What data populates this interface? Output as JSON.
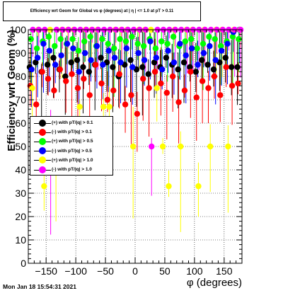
{
  "title": "Efficiency wrt Geom for Global vs φ (degrees) at | η | <= 1.0 at pT > 0.11",
  "footer": "Mon Jan 18 15:54:31 2021",
  "legend": [
    {
      "label": "(+) with pT/|q| > 0.1",
      "color": "#000000"
    },
    {
      "label": "(-) with pT/|q| > 0.1",
      "color": "#ff0000"
    },
    {
      "label": "(+) with pT/|q| > 0.5",
      "color": "#00ff00"
    },
    {
      "label": "(-) with pT/|q| > 0.5",
      "color": "#0000ff"
    },
    {
      "label": "(+) with pT/|q| > 1.0",
      "color": "#ffff00"
    },
    {
      "label": "(-) with pT/|q| > 1.0",
      "color": "#ff00ff"
    }
  ],
  "chart_data": {
    "type": "scatter",
    "title": "Efficiency wrt Geom for Global vs φ (degrees) at | η | <= 1.0 at pT > 0.11",
    "xlabel": "φ (degrees)",
    "ylabel": "Efficiency wrt Geom (%)",
    "xlim": [
      -180,
      180
    ],
    "ylim": [
      0,
      100
    ],
    "xticks": [
      -150,
      -100,
      -50,
      0,
      50,
      100,
      150
    ],
    "yticks": [
      0,
      10,
      20,
      30,
      40,
      50,
      60,
      70,
      80,
      90,
      100
    ],
    "grid": true,
    "legend_position": "center-left",
    "series": [
      {
        "name": "(+) with pT/|q| > 0.1",
        "color": "#000000",
        "x": [
          -175,
          -165,
          -155,
          -145,
          -135,
          -125,
          -115,
          -105,
          -95,
          -85,
          -75,
          -65,
          -55,
          -45,
          -35,
          -25,
          -15,
          -5,
          5,
          15,
          25,
          35,
          45,
          55,
          65,
          75,
          85,
          95,
          105,
          115,
          125,
          135,
          145,
          155,
          165,
          175
        ],
        "y": [
          84,
          86,
          82,
          85,
          88,
          83,
          80,
          86,
          87,
          84,
          82,
          85,
          88,
          86,
          84,
          80,
          85,
          87,
          83,
          84,
          81,
          86,
          84,
          88,
          85,
          83,
          86,
          84,
          82,
          87,
          85,
          83,
          86,
          88,
          84,
          84
        ]
      },
      {
        "name": "(-) with pT/|q| > 0.1",
        "color": "#ff0000",
        "x": [
          -175,
          -165,
          -155,
          -145,
          -135,
          -125,
          -115,
          -105,
          -95,
          -85,
          -75,
          -65,
          -55,
          -45,
          -35,
          -25,
          -15,
          -5,
          5,
          15,
          25,
          35,
          45,
          55,
          65,
          75,
          85,
          95,
          105,
          115,
          125,
          135,
          145,
          155,
          165,
          175
        ],
        "y": [
          76,
          68,
          82,
          79,
          74,
          83,
          78,
          81,
          75,
          79,
          72,
          85,
          77,
          70,
          74,
          81,
          68,
          72,
          64,
          79,
          75,
          82,
          77,
          73,
          80,
          69,
          74,
          82,
          71,
          78,
          75,
          80,
          72,
          84,
          76,
          77
        ]
      },
      {
        "name": "(+) with pT/|q| > 0.5",
        "color": "#00ff00",
        "x": [
          -175,
          -165,
          -155,
          -145,
          -135,
          -125,
          -115,
          -105,
          -95,
          -85,
          -75,
          -65,
          -55,
          -45,
          -35,
          -25,
          -15,
          -5,
          5,
          15,
          25,
          35,
          45,
          55,
          65,
          75,
          85,
          95,
          105,
          115,
          125,
          135,
          145,
          155,
          165,
          175
        ],
        "y": [
          96,
          92,
          95,
          97,
          93,
          96,
          94,
          96,
          91,
          95,
          97,
          93,
          96,
          94,
          92,
          96,
          95,
          97,
          94,
          93,
          96,
          92,
          95,
          94,
          97,
          93,
          95,
          96,
          92,
          94,
          97,
          96,
          93,
          95,
          97,
          96
        ]
      },
      {
        "name": "(-) with pT/|q| > 0.5",
        "color": "#0000ff",
        "x": [
          -175,
          -165,
          -155,
          -145,
          -135,
          -125,
          -115,
          -105,
          -95,
          -85,
          -75,
          -65,
          -55,
          -45,
          -35,
          -25,
          -15,
          -5,
          5,
          15,
          25,
          35,
          45,
          55,
          65,
          75,
          85,
          95,
          105,
          115,
          125,
          135,
          145,
          155,
          165,
          175
        ],
        "y": [
          83,
          88,
          94,
          91,
          85,
          89,
          94,
          92,
          82,
          90,
          87,
          93,
          85,
          91,
          88,
          86,
          92,
          84,
          90,
          87,
          95,
          88,
          83,
          91,
          86,
          94,
          89,
          92,
          85,
          90,
          93,
          87,
          91,
          94,
          99,
          100
        ]
      },
      {
        "name": "(+) with pT/|q| > 1.0",
        "color": "#ffff00",
        "x": [
          -175,
          -165,
          -155,
          -145,
          -135,
          -125,
          -115,
          -105,
          -95,
          -85,
          -75,
          -65,
          -55,
          -45,
          -35,
          -25,
          -15,
          -5,
          5,
          15,
          25,
          35,
          45,
          55,
          65,
          75,
          85,
          95,
          105,
          115,
          125,
          135,
          145,
          155,
          165,
          175
        ],
        "y": [
          75,
          100,
          33,
          100,
          50,
          100,
          100,
          100,
          67,
          100,
          100,
          100,
          67,
          67,
          100,
          100,
          100,
          50,
          100,
          100,
          100,
          75,
          50,
          33,
          100,
          50,
          100,
          100,
          33,
          100,
          50,
          100,
          100,
          50,
          100,
          100
        ]
      },
      {
        "name": "(-) with pT/|q| > 1.0",
        "color": "#ff00ff",
        "x": [
          -175,
          -165,
          -155,
          -145,
          -135,
          -125,
          -115,
          -105,
          -95,
          -85,
          -75,
          -65,
          -55,
          -45,
          -35,
          -25,
          -15,
          -5,
          5,
          15,
          25,
          35,
          45,
          55,
          65,
          75,
          85,
          95,
          105,
          115,
          125,
          135,
          145,
          155,
          165,
          175
        ],
        "y": [
          100,
          100,
          100,
          50,
          100,
          100,
          100,
          100,
          100,
          100,
          100,
          100,
          100,
          100,
          100,
          100,
          100,
          100,
          100,
          100,
          50,
          100,
          100,
          100,
          100,
          100,
          100,
          100,
          100,
          100,
          100,
          100,
          100,
          100,
          100,
          100
        ]
      }
    ]
  }
}
